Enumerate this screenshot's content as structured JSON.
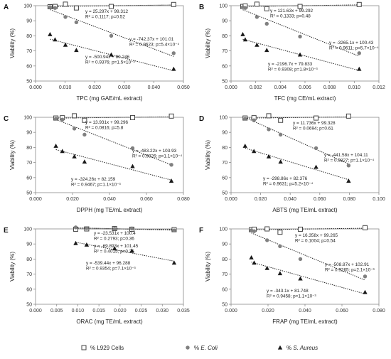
{
  "legend": {
    "placement": "bottom",
    "items": [
      {
        "pre": "% L929 Cells",
        "italic": "",
        "marker": "square"
      },
      {
        "pre": "% ",
        "italic": "E. Coli",
        "marker": "circle"
      },
      {
        "pre": "% ",
        "italic": "S. Aureus",
        "marker": "triangle"
      }
    ]
  },
  "colors": {
    "square_fill": "#ffffff",
    "square_stroke": "#444444",
    "circle": "#808080",
    "triangle": "#1a1a1a"
  },
  "chart_data": [
    {
      "panel": "A",
      "type": "scatter",
      "xlabel": "TPC (mg GAE/mL extract)",
      "ylabel": "Viability (%)",
      "xlim": [
        0.0,
        0.05
      ],
      "ylim": [
        50,
        100
      ],
      "xticks": [
        "0.000",
        "0.010",
        "0.020",
        "0.030",
        "0.040",
        "0.050"
      ],
      "yticks": [
        "50",
        "60",
        "70",
        "80",
        "90",
        "100"
      ],
      "grid": false,
      "x": [
        0.0049,
        0.0066,
        0.0101,
        0.0138,
        0.0256,
        0.0467
      ],
      "series": [
        {
          "marker": "square",
          "values": [
            99.3,
            99.5,
            101.0,
            98.5,
            99.5,
            100.8
          ],
          "fit": {
            "slope": 25.297,
            "intercept": 99.312
          }
        },
        {
          "marker": "circle",
          "values": [
            99.0,
            98.5,
            92.5,
            89.0,
            80.0,
            68.5
          ],
          "fit": {
            "slope": -742.37,
            "intercept": 101.01
          }
        },
        {
          "marker": "triangle",
          "values": [
            81.0,
            77.5,
            74.0,
            70.5,
            67.5,
            58.0
          ],
          "fit": {
            "slope": -500.94,
            "intercept": 80.246
          }
        }
      ],
      "annotations": [
        {
          "lines": [
            "y = 25.297x + 99.312",
            "R² = 0.1117; p=0.52"
          ]
        },
        {
          "lines": [
            "y = -742.37x + 101.01",
            "R² = 0.9623; p=5.4×10⁻⁴"
          ]
        },
        {
          "lines": [
            "y = -500.94x + 80.246",
            "R² = 0.9376; p=1.5×10⁻³"
          ]
        }
      ]
    },
    {
      "panel": "B",
      "type": "scatter",
      "xlabel": "TFC (mg CE/mL extract)",
      "ylabel": "Viability (%)",
      "xlim": [
        0.0,
        0.012
      ],
      "ylim": [
        50,
        100
      ],
      "xticks": [
        "0.000",
        "0.002",
        "0.004",
        "0.006",
        "0.008",
        "0.010",
        "0.012"
      ],
      "yticks": [
        "50",
        "60",
        "70",
        "80",
        "90",
        "100"
      ],
      "grid": false,
      "x": [
        0.00095,
        0.00115,
        0.0021,
        0.0029,
        0.0056,
        0.0104
      ],
      "series": [
        {
          "marker": "square",
          "values": [
            99.5,
            99.8,
            101.0,
            98.0,
            99.5,
            100.8
          ],
          "fit": {
            "slope": 121.63,
            "intercept": 99.292
          }
        },
        {
          "marker": "circle",
          "values": [
            99.0,
            98.5,
            92.5,
            88.0,
            79.5,
            68.5
          ],
          "fit": {
            "slope": -3265.1,
            "intercept": 100.43
          }
        },
        {
          "marker": "triangle",
          "values": [
            81.0,
            77.5,
            74.0,
            70.5,
            67.5,
            58.0
          ],
          "fit": {
            "slope": -2196.7,
            "intercept": 79.833
          }
        }
      ],
      "annotations": [
        {
          "lines": [
            "y = 121.63x + 99.292",
            "R² = 0.1333; p=0.48"
          ]
        },
        {
          "lines": [
            "y = -3265.1x + 100.43",
            "R² = 0.9611; p=5.7×10⁻⁴"
          ]
        },
        {
          "lines": [
            "y = -2196.7x + 79.833",
            "R² = 0.9308; p=1.8×10⁻³"
          ]
        }
      ]
    },
    {
      "panel": "C",
      "type": "scatter",
      "xlabel": "DPPH (mg TE/mL extract)",
      "ylabel": "Viability (%)",
      "xlim": [
        0.0,
        0.08
      ],
      "ylim": [
        50,
        100
      ],
      "xticks": [
        "0.000",
        "0.020",
        "0.040",
        "0.060",
        "0.080"
      ],
      "yticks": [
        "50",
        "60",
        "70",
        "80",
        "90",
        "100"
      ],
      "grid": false,
      "x": [
        0.011,
        0.0145,
        0.021,
        0.0265,
        0.0525,
        0.0735
      ],
      "series": [
        {
          "marker": "square",
          "values": [
            99.5,
            99.7,
            101.0,
            98.0,
            99.8,
            100.8
          ],
          "fit": {
            "slope": 13.931,
            "intercept": 99.296
          }
        },
        {
          "marker": "circle",
          "values": [
            99.0,
            98.5,
            92.5,
            88.5,
            79.5,
            68.5
          ],
          "fit": {
            "slope": -483.22,
            "intercept": 103.93
          }
        },
        {
          "marker": "triangle",
          "values": [
            81.0,
            77.5,
            74.0,
            70.5,
            67.5,
            57.8
          ],
          "fit": {
            "slope": -324.26,
            "intercept": 82.159
          }
        }
      ],
      "annotations": [
        {
          "lines": [
            "y = 13.931x + 99.296",
            "R² = 0.0816; p=5.8"
          ]
        },
        {
          "lines": [
            "y = -483.22x + 103.93",
            "R² = 0.9826; p=1.1×10⁻⁴"
          ]
        },
        {
          "lines": [
            "y = -324.26x + 82.159",
            "R² = 0.9467; p=1.1×10⁻³"
          ]
        }
      ]
    },
    {
      "panel": "D",
      "type": "scatter",
      "xlabel": "ABTS (mg TE/mL extract)",
      "ylabel": "Viability (%)",
      "xlim": [
        0.0,
        0.1
      ],
      "ylim": [
        50,
        100
      ],
      "xticks": [
        "0.000",
        "0.020",
        "0.040",
        "0.060",
        "0.080",
        "0.100"
      ],
      "yticks": [
        "50",
        "60",
        "70",
        "80",
        "90",
        "100"
      ],
      "grid": false,
      "x": [
        0.0095,
        0.0155,
        0.0255,
        0.0335,
        0.0575,
        0.0795
      ],
      "series": [
        {
          "marker": "square",
          "values": [
            99.5,
            99.7,
            101.0,
            98.0,
            99.5,
            100.8
          ],
          "fit": {
            "slope": 11.736,
            "intercept": 99.328
          }
        },
        {
          "marker": "circle",
          "values": [
            99.0,
            98.0,
            92.0,
            88.5,
            79.5,
            68.0
          ],
          "fit": {
            "slope": -441.58,
            "intercept": 104.11
          }
        },
        {
          "marker": "triangle",
          "values": [
            81.0,
            77.5,
            74.0,
            70.5,
            67.0,
            57.8
          ],
          "fit": {
            "slope": -298.86,
            "intercept": 82.376
          }
        }
      ],
      "annotations": [
        {
          "lines": [
            "y = 11.736x + 99.328",
            "R² = 0.0694; p=0.61"
          ]
        },
        {
          "lines": [
            "y = -441.58x + 104.11",
            "R² = 0.9827; p=1.1×10⁻⁴"
          ]
        },
        {
          "lines": [
            "y = -298.86x + 82.376",
            "R² = 0.9631; p=5.2×10⁻⁴"
          ]
        }
      ]
    },
    {
      "panel": "E",
      "type": "scatter",
      "xlabel": "ORAC (mg TE/mL extract)",
      "ylabel": "Viability (%)",
      "xlim": [
        0.0,
        0.035
      ],
      "ylim": [
        50,
        100
      ],
      "xticks": [
        "0.000",
        "0.005",
        "0.010",
        "0.015",
        "0.020",
        "0.025",
        "0.030",
        "0.035"
      ],
      "yticks": [
        "50",
        "60",
        "70",
        "80",
        "90",
        "100"
      ],
      "grid": false,
      "x": [
        0.0095,
        0.0121,
        0.0187,
        0.0228,
        0.0328
      ],
      "series": [
        {
          "marker": "square",
          "values": [
            99.8,
            100.0,
            100.2,
            99.8,
            99.5
          ],
          "fit": {
            "slope": -23.531,
            "intercept": 100.4
          }
        },
        {
          "marker": "circle",
          "values": [
            101.0,
            100.5,
            100.0,
            100.3,
            99.0
          ],
          "fit": {
            "slope": -69.893,
            "intercept": 101.45
          }
        },
        {
          "marker": "triangle",
          "values": [
            90.5,
            89.5,
            87.0,
            85.5,
            77.5
          ],
          "fit": {
            "slope": -539.44,
            "intercept": 96.288
          }
        }
      ],
      "annotations": [
        {
          "lines": [
            "y = -23.531x + 100.4",
            "R² = 0.2793; p=0.36"
          ]
        },
        {
          "lines": [
            "y = -69.893x + 101.45",
            "R² = 0.4015; p=0.25"
          ]
        },
        {
          "lines": [
            "y = -539.44x + 96.288",
            "R² = 0.9354; p=7.1×10⁻³"
          ]
        }
      ]
    },
    {
      "panel": "F",
      "type": "scatter",
      "xlabel": "FRAP (mg TE/mL extract)",
      "ylabel": "Viability (%)",
      "xlim": [
        0.0,
        0.08
      ],
      "ylim": [
        50,
        100
      ],
      "xticks": [
        "0.000",
        "0.020",
        "0.040",
        "0.060",
        "0.080"
      ],
      "yticks": [
        "50",
        "60",
        "70",
        "80",
        "90",
        "100"
      ],
      "grid": false,
      "x": [
        0.011,
        0.0125,
        0.0195,
        0.0265,
        0.0375,
        0.0725
      ],
      "series": [
        {
          "marker": "square",
          "values": [
            99.5,
            99.8,
            100.0,
            97.8,
            99.8,
            100.8
          ],
          "fit": {
            "slope": 16.358,
            "intercept": 99.265
          }
        },
        {
          "marker": "circle",
          "values": [
            99.0,
            98.5,
            92.5,
            88.5,
            80.0,
            68.5
          ],
          "fit": {
            "slope": -508.87,
            "intercept": 102.91
          }
        },
        {
          "marker": "triangle",
          "values": [
            81.0,
            77.5,
            74.0,
            70.5,
            67.0,
            58.0
          ],
          "fit": {
            "slope": -343.1,
            "intercept": 81.748
          }
        }
      ],
      "annotations": [
        {
          "lines": [
            "y = 16.358x + 99.265",
            "R² = 0.1004; p=0.54"
          ]
        },
        {
          "lines": [
            "y = -508.87x + 102.91",
            "R² = 0.9265; p=2.1×10⁻³"
          ]
        },
        {
          "lines": [
            "y = -343.1x + 81.748",
            "R² = 0.9458; p=1.1×10⁻³"
          ]
        }
      ]
    }
  ]
}
